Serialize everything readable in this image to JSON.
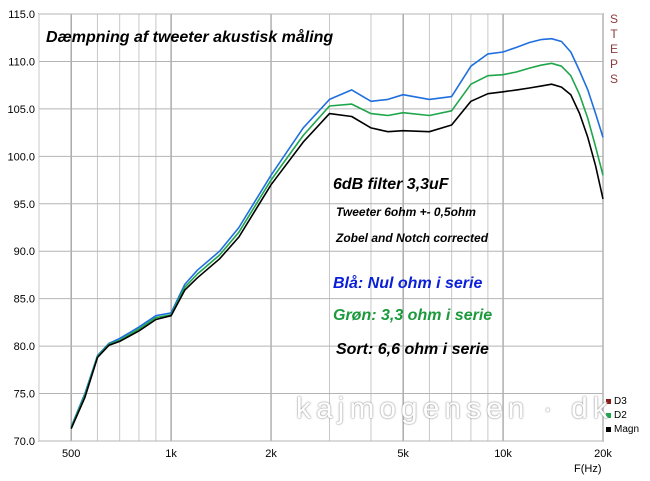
{
  "chart_data": {
    "type": "line",
    "title": "Dæmpning af tweeter akustisk måling",
    "xlabel": "F(Hz)",
    "ylabel": "",
    "x_scale": "log",
    "xlim": [
      400,
      20000
    ],
    "ylim": [
      70,
      115
    ],
    "grid": true,
    "x_ticks": [
      {
        "value": 500,
        "label": "500"
      },
      {
        "value": 1000,
        "label": "1k"
      },
      {
        "value": 2000,
        "label": "2k"
      },
      {
        "value": 5000,
        "label": "5k"
      },
      {
        "value": 10000,
        "label": "10k"
      },
      {
        "value": 20000,
        "label": "20k"
      }
    ],
    "y_ticks": [
      "70.0",
      "75.0",
      "80.0",
      "85.0",
      "90.0",
      "95.0",
      "100.0",
      "105.0",
      "110.0",
      "115.0"
    ],
    "annotations": [
      "6dB filter 3,3uF",
      "Tweeter 6ohm +- 0,5ohm",
      "Zobel and Notch corrected",
      "Blå: Nul ohm i serie",
      "Grøn: 3,3 ohm i serie",
      "Sort: 6,6 ohm i serie"
    ],
    "legend": {
      "placement": "bottom-right",
      "entries": [
        "D3",
        "D2",
        "Magn"
      ]
    },
    "brand": "STEPS",
    "watermark": "kajmogensen.dk",
    "series": [
      {
        "name": "D3",
        "color": "#1f6fde",
        "x": [
          500,
          550,
          600,
          650,
          700,
          800,
          900,
          1000,
          1100,
          1200,
          1400,
          1600,
          2000,
          2500,
          3000,
          3500,
          4000,
          4500,
          5000,
          6000,
          7000,
          8000,
          9000,
          10000,
          11000,
          12000,
          13000,
          14000,
          15000,
          16000,
          17000,
          18000,
          19000,
          20000
        ],
        "y": [
          71.5,
          75,
          79,
          80.3,
          80.8,
          82,
          83.2,
          83.5,
          86.5,
          88,
          90,
          92.5,
          98,
          103,
          106,
          107,
          105.8,
          106,
          106.5,
          106,
          106.3,
          109.5,
          110.8,
          111,
          111.5,
          112,
          112.3,
          112.4,
          112.1,
          111,
          109,
          107,
          104.5,
          102
        ]
      },
      {
        "name": "D2",
        "color": "#1fa54a",
        "x": [
          500,
          550,
          600,
          650,
          700,
          800,
          900,
          1000,
          1100,
          1200,
          1400,
          1600,
          2000,
          2500,
          3000,
          3500,
          4000,
          4500,
          5000,
          6000,
          7000,
          8000,
          9000,
          10000,
          11000,
          12000,
          13000,
          14000,
          15000,
          16000,
          17000,
          18000,
          19000,
          20000
        ],
        "y": [
          71.4,
          74.8,
          78.9,
          80.2,
          80.6,
          81.8,
          83,
          83.3,
          86.2,
          87.6,
          89.6,
          92,
          97.5,
          102.2,
          105.3,
          105.5,
          104.5,
          104.3,
          104.6,
          104.3,
          104.8,
          107.6,
          108.5,
          108.6,
          108.9,
          109.3,
          109.6,
          109.8,
          109.5,
          108.5,
          106.5,
          104,
          101,
          98
        ]
      },
      {
        "name": "Magn",
        "color": "#000000",
        "x": [
          500,
          550,
          600,
          650,
          700,
          800,
          900,
          1000,
          1100,
          1200,
          1400,
          1600,
          2000,
          2500,
          3000,
          3500,
          4000,
          4500,
          5000,
          6000,
          7000,
          8000,
          9000,
          10000,
          11000,
          12000,
          13000,
          14000,
          15000,
          16000,
          17000,
          18000,
          19000,
          20000
        ],
        "y": [
          71.3,
          74.6,
          78.8,
          80.1,
          80.5,
          81.6,
          82.8,
          83.2,
          85.9,
          87.2,
          89.2,
          91.5,
          97,
          101.5,
          104.5,
          104.2,
          103,
          102.6,
          102.7,
          102.6,
          103.3,
          105.8,
          106.6,
          106.8,
          107,
          107.2,
          107.4,
          107.6,
          107.3,
          106.5,
          104.5,
          102,
          99,
          95.5
        ]
      }
    ]
  }
}
